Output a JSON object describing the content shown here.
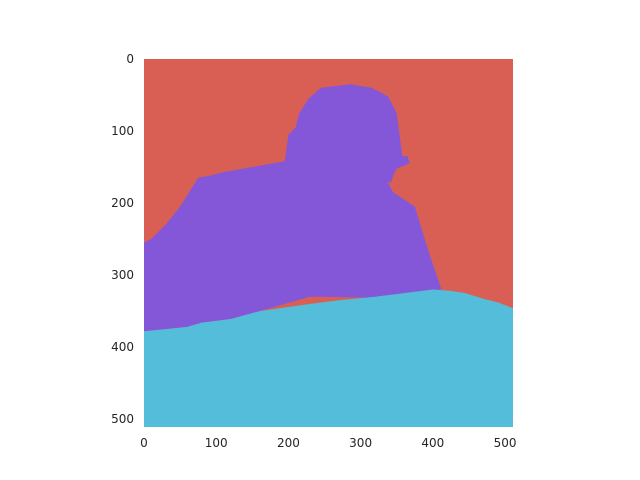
{
  "chart_data": {
    "type": "heatmap",
    "subtype": "segmentation-mask",
    "title": "",
    "xlabel": "",
    "ylabel": "",
    "xlim": [
      0,
      511
    ],
    "ylim": [
      511,
      0
    ],
    "grid": false,
    "x_ticks": [
      0,
      100,
      200,
      300,
      400,
      500
    ],
    "y_ticks": [
      0,
      100,
      200,
      300,
      400,
      500
    ],
    "colors": {
      "background": "#d95f54",
      "subject": "#8457d9",
      "ground": "#54bdd9"
    },
    "regions": [
      {
        "class": "background",
        "color": "#d95f54",
        "polygon": [
          [
            0,
            0
          ],
          [
            511,
            0
          ],
          [
            511,
            511
          ],
          [
            0,
            511
          ]
        ]
      },
      {
        "class": "subject",
        "color": "#8457d9",
        "polygon": [
          [
            0,
            255
          ],
          [
            10,
            250
          ],
          [
            30,
            230
          ],
          [
            50,
            205
          ],
          [
            75,
            165
          ],
          [
            90,
            162
          ],
          [
            110,
            157
          ],
          [
            150,
            150
          ],
          [
            195,
            142
          ],
          [
            200,
            105
          ],
          [
            210,
            95
          ],
          [
            215,
            75
          ],
          [
            228,
            55
          ],
          [
            245,
            40
          ],
          [
            285,
            35
          ],
          [
            315,
            40
          ],
          [
            338,
            52
          ],
          [
            350,
            75
          ],
          [
            355,
            115
          ],
          [
            358,
            135
          ],
          [
            365,
            135
          ],
          [
            368,
            145
          ],
          [
            360,
            148
          ],
          [
            350,
            152
          ],
          [
            345,
            162
          ],
          [
            342,
            172
          ],
          [
            337,
            170
          ],
          [
            345,
            185
          ],
          [
            360,
            195
          ],
          [
            375,
            205
          ],
          [
            395,
            270
          ],
          [
            412,
            320
          ],
          [
            398,
            322
          ],
          [
            370,
            328
          ],
          [
            320,
            333
          ],
          [
            300,
            331
          ],
          [
            230,
            330
          ],
          [
            195,
            340
          ],
          [
            160,
            350
          ],
          [
            120,
            361
          ],
          [
            80,
            366
          ],
          [
            60,
            372
          ],
          [
            30,
            375
          ],
          [
            0,
            378
          ]
        ]
      },
      {
        "class": "ground",
        "color": "#54bdd9",
        "polygon": [
          [
            0,
            378
          ],
          [
            30,
            375
          ],
          [
            60,
            372
          ],
          [
            80,
            366
          ],
          [
            120,
            361
          ],
          [
            160,
            350
          ],
          [
            195,
            345
          ],
          [
            230,
            340
          ],
          [
            270,
            335
          ],
          [
            320,
            330
          ],
          [
            360,
            325
          ],
          [
            400,
            320
          ],
          [
            425,
            322
          ],
          [
            445,
            325
          ],
          [
            470,
            333
          ],
          [
            490,
            338
          ],
          [
            511,
            346
          ],
          [
            511,
            511
          ],
          [
            0,
            511
          ]
        ]
      }
    ]
  }
}
